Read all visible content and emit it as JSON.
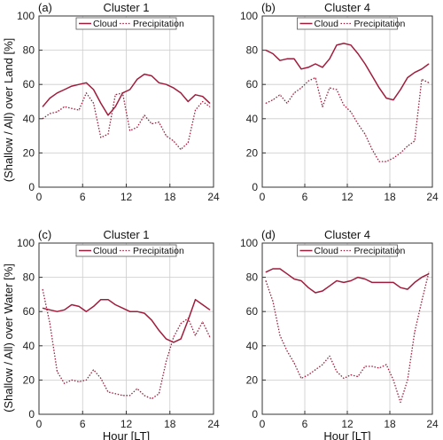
{
  "ylabel_top": "(Shallow / All) over Land [%]",
  "ylabel_bottom": "(Shallow / All) over Water [%]",
  "xlabel": "Hour [LT]",
  "colors": {
    "series": "#a01c3c",
    "axis": "#333333",
    "grid": "#cccccc"
  },
  "legend": {
    "cloud": "Cloud",
    "precip": "Precipitation"
  },
  "chart_data": [
    {
      "type": "line",
      "panel": "(a)",
      "title": "Cluster 1",
      "xlabel": "",
      "ylabel": "(Shallow / All) over Land [%]",
      "xlim": [
        0,
        24
      ],
      "ylim": [
        0,
        100
      ],
      "xticks": [
        0,
        6,
        12,
        18,
        24
      ],
      "yticks": [
        0,
        20,
        40,
        60,
        80,
        100
      ],
      "grid": true,
      "legend_position": "top-center",
      "series": [
        {
          "name": "Cloud",
          "style": "solid",
          "x": [
            0.5,
            1.5,
            2.5,
            3.5,
            4.5,
            5.5,
            6.5,
            7.5,
            8.5,
            9.5,
            10.5,
            11.5,
            12.5,
            13.5,
            14.5,
            15.5,
            16.5,
            17.5,
            18.5,
            19.5,
            20.5,
            21.5,
            22.5,
            23.5
          ],
          "y": [
            47,
            52,
            55,
            57,
            59,
            60,
            61,
            57,
            49,
            42,
            47,
            55,
            57,
            63,
            66,
            65,
            61,
            60,
            58,
            55,
            50,
            54,
            53,
            49
          ]
        },
        {
          "name": "Precipitation",
          "style": "dotted",
          "x": [
            0.5,
            1.5,
            2.5,
            3.5,
            4.5,
            5.5,
            6.5,
            7.5,
            8.5,
            9.5,
            10.5,
            11.5,
            12.5,
            13.5,
            14.5,
            15.5,
            16.5,
            17.5,
            18.5,
            19.5,
            20.5,
            21.5,
            22.5,
            23.5
          ],
          "y": [
            40,
            43,
            44,
            47,
            46,
            45,
            55,
            49,
            29,
            31,
            54,
            55,
            33,
            35,
            42,
            37,
            38,
            30,
            27,
            22,
            26,
            45,
            50,
            47
          ]
        }
      ]
    },
    {
      "type": "line",
      "panel": "(b)",
      "title": "Cluster 4",
      "xlabel": "",
      "ylabel": "",
      "xlim": [
        0,
        24
      ],
      "ylim": [
        0,
        100
      ],
      "xticks": [
        0,
        6,
        12,
        18,
        24
      ],
      "yticks": [
        0,
        20,
        40,
        60,
        80,
        100
      ],
      "grid": true,
      "legend_position": "top-center",
      "series": [
        {
          "name": "Cloud",
          "style": "solid",
          "x": [
            0.5,
            1.5,
            2.5,
            3.5,
            4.5,
            5.5,
            6.5,
            7.5,
            8.5,
            9.5,
            10.5,
            11.5,
            12.5,
            13.5,
            14.5,
            15.5,
            16.5,
            17.5,
            18.5,
            19.5,
            20.5,
            21.5,
            22.5,
            23.5
          ],
          "y": [
            80,
            78,
            74,
            75,
            75,
            69,
            70,
            72,
            70,
            75,
            83,
            84,
            83,
            78,
            72,
            65,
            58,
            52,
            51,
            57,
            64,
            67,
            69,
            72
          ]
        },
        {
          "name": "Precipitation",
          "style": "dotted",
          "x": [
            0.5,
            1.5,
            2.5,
            3.5,
            4.5,
            5.5,
            6.5,
            7.5,
            8.5,
            9.5,
            10.5,
            11.5,
            12.5,
            13.5,
            14.5,
            15.5,
            16.5,
            17.5,
            18.5,
            19.5,
            20.5,
            21.5,
            22.5,
            23.5
          ],
          "y": [
            49,
            51,
            54,
            49,
            55,
            58,
            62,
            64,
            47,
            58,
            57,
            48,
            44,
            37,
            31,
            22,
            15,
            15,
            17,
            20,
            24,
            27,
            63,
            61
          ]
        }
      ]
    },
    {
      "type": "line",
      "panel": "(c)",
      "title": "Cluster 1",
      "xlabel": "Hour [LT]",
      "ylabel": "(Shallow / All) over Water [%]",
      "xlim": [
        0,
        24
      ],
      "ylim": [
        0,
        100
      ],
      "xticks": [
        0,
        6,
        12,
        18,
        24
      ],
      "yticks": [
        0,
        20,
        40,
        60,
        80,
        100
      ],
      "grid": true,
      "legend_position": "top-center",
      "series": [
        {
          "name": "Cloud",
          "style": "solid",
          "x": [
            0.5,
            1.5,
            2.5,
            3.5,
            4.5,
            5.5,
            6.5,
            7.5,
            8.5,
            9.5,
            10.5,
            11.5,
            12.5,
            13.5,
            14.5,
            15.5,
            16.5,
            17.5,
            18.5,
            19.5,
            20.5,
            21.5,
            22.5,
            23.5
          ],
          "y": [
            62,
            61,
            60,
            61,
            64,
            63,
            60,
            63,
            67,
            67,
            64,
            62,
            60,
            60,
            59,
            55,
            49,
            44,
            42,
            44,
            55,
            67,
            64,
            61
          ]
        },
        {
          "name": "Precipitation",
          "style": "dotted",
          "x": [
            0.5,
            1.5,
            2.5,
            3.5,
            4.5,
            5.5,
            6.5,
            7.5,
            8.5,
            9.5,
            10.5,
            11.5,
            12.5,
            13.5,
            14.5,
            15.5,
            16.5,
            17.5,
            18.5,
            19.5,
            20.5,
            21.5,
            22.5,
            23.5
          ],
          "y": [
            73,
            53,
            25,
            18,
            20,
            19,
            20,
            26,
            21,
            13,
            12,
            11,
            11,
            15,
            11,
            9,
            12,
            31,
            45,
            53,
            56,
            46,
            54,
            45
          ]
        }
      ]
    },
    {
      "type": "line",
      "panel": "(d)",
      "title": "Cluster 4",
      "xlabel": "Hour [LT]",
      "ylabel": "",
      "xlim": [
        0,
        24
      ],
      "ylim": [
        0,
        100
      ],
      "xticks": [
        0,
        6,
        12,
        18,
        24
      ],
      "yticks": [
        0,
        20,
        40,
        60,
        80,
        100
      ],
      "grid": true,
      "legend_position": "top-center",
      "series": [
        {
          "name": "Cloud",
          "style": "solid",
          "x": [
            0.5,
            1.5,
            2.5,
            3.5,
            4.5,
            5.5,
            6.5,
            7.5,
            8.5,
            9.5,
            10.5,
            11.5,
            12.5,
            13.5,
            14.5,
            15.5,
            16.5,
            17.5,
            18.5,
            19.5,
            20.5,
            21.5,
            22.5,
            23.5
          ],
          "y": [
            83,
            85,
            85,
            82,
            79,
            78,
            74,
            71,
            72,
            75,
            78,
            77,
            78,
            80,
            79,
            77,
            77,
            77,
            77,
            74,
            73,
            77,
            80,
            82
          ]
        },
        {
          "name": "Precipitation",
          "style": "dotted",
          "x": [
            0.5,
            1.5,
            2.5,
            3.5,
            4.5,
            5.5,
            6.5,
            7.5,
            8.5,
            9.5,
            10.5,
            11.5,
            12.5,
            13.5,
            14.5,
            15.5,
            16.5,
            17.5,
            18.5,
            19.5,
            20.5,
            21.5,
            22.5,
            23.5
          ],
          "y": [
            78,
            66,
            46,
            37,
            30,
            21,
            23,
            26,
            29,
            34,
            25,
            21,
            23,
            22,
            28,
            28,
            27,
            29,
            20,
            7,
            20,
            48,
            66,
            83
          ]
        }
      ]
    }
  ]
}
